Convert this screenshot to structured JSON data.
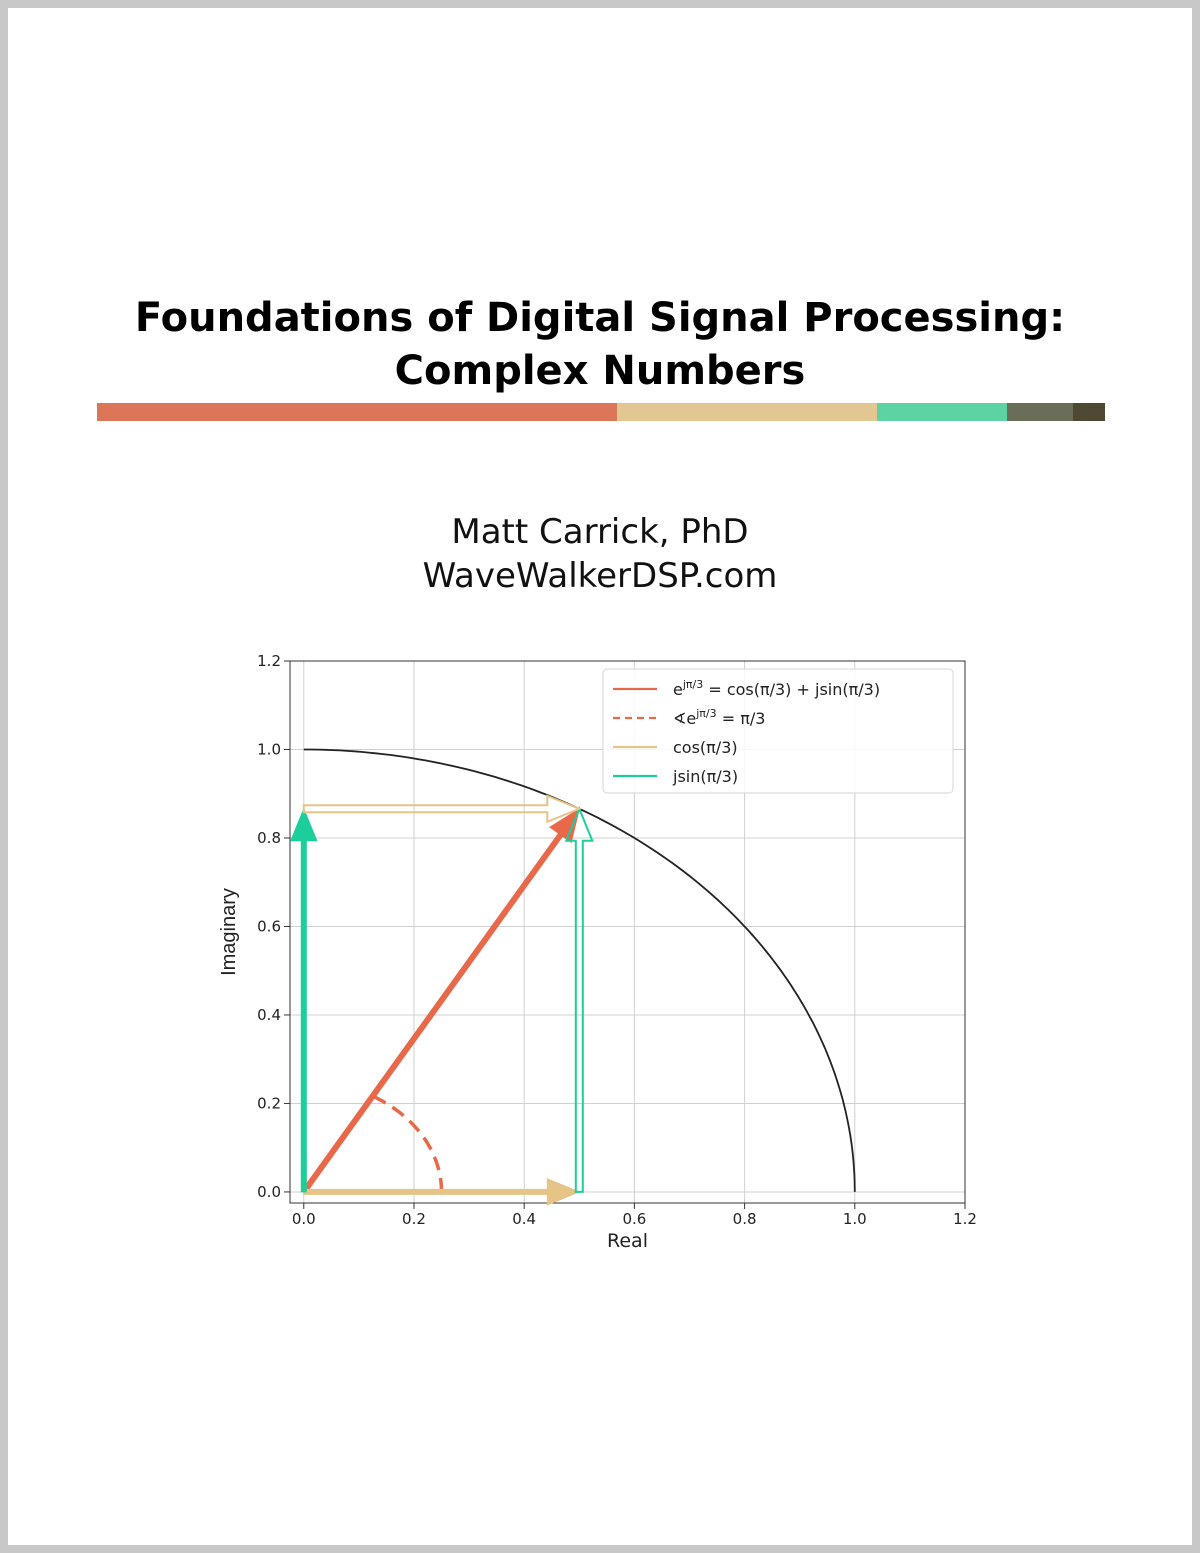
{
  "document": {
    "title_line1": "Foundations of Digital Signal Processing:",
    "title_line2": "Complex Numbers",
    "author": "Matt Carrick, PhD",
    "website": "WaveWalkerDSP.com"
  },
  "color_bar": [
    {
      "color": "#dc7658",
      "share": 0.516
    },
    {
      "color": "#e2c792",
      "share": 0.258
    },
    {
      "color": "#5dd3a3",
      "share": 0.129
    },
    {
      "color": "#6a6d58",
      "share": 0.065
    },
    {
      "color": "#4f4934",
      "share": 0.032
    }
  ],
  "colors": {
    "orange": "#e8694a",
    "sand": "#e6c386",
    "teal": "#1ccf9a",
    "circle": "#222222",
    "grid": "#d0d0d0"
  },
  "chart_data": {
    "type": "line",
    "xlabel": "Real",
    "ylabel": "Imaginary",
    "xlim": [
      -0.025,
      1.2
    ],
    "ylim": [
      -0.025,
      1.2
    ],
    "xticks": [
      "0.0",
      "0.2",
      "0.4",
      "0.6",
      "0.8",
      "1.0",
      "1.2"
    ],
    "yticks": [
      "0.0",
      "0.2",
      "0.4",
      "0.6",
      "0.8",
      "1.0",
      "1.2"
    ],
    "grid": true,
    "legend_position": "top-right",
    "legend": [
      {
        "style": "solid",
        "color": "#e8694a",
        "pre": "e",
        "sup": "jπ/3",
        "post": " = cos(π/3) + jsin(π/3)"
      },
      {
        "style": "dashed",
        "color": "#e8694a",
        "pre": "∢e",
        "sup": "jπ/3",
        "post": " = π/3"
      },
      {
        "style": "solid",
        "color": "#e6c386",
        "pre": "cos(π/3)",
        "sup": "",
        "post": ""
      },
      {
        "style": "solid",
        "color": "#1ccf9a",
        "pre": "jsin(π/3)",
        "sup": "",
        "post": ""
      }
    ],
    "unit_circle_arc": {
      "radius": 1.0,
      "from_deg": 0,
      "to_deg": 90
    },
    "vectors": [
      {
        "name": "complex-exponential",
        "from": [
          0,
          0
        ],
        "to": [
          0.5,
          0.866
        ],
        "style": "filled",
        "color": "#e8694a"
      },
      {
        "name": "real-part",
        "from": [
          0,
          0
        ],
        "to": [
          0.5,
          0
        ],
        "style": "filled",
        "color": "#e6c386"
      },
      {
        "name": "imaginary-part",
        "from": [
          0,
          0
        ],
        "to": [
          0,
          0.866
        ],
        "style": "filled",
        "color": "#1ccf9a"
      },
      {
        "name": "imaginary-part-shifted",
        "from": [
          0.5,
          0
        ],
        "to": [
          0.5,
          0.866
        ],
        "style": "hollow",
        "color": "#1ccf9a"
      },
      {
        "name": "real-part-shifted",
        "from": [
          0,
          0.866
        ],
        "to": [
          0.5,
          0.866
        ],
        "style": "hollow",
        "color": "#e6c386"
      }
    ],
    "angle_arc": {
      "radius": 0.25,
      "from_deg": 0,
      "to_deg": 60,
      "style": "dashed",
      "color": "#e8694a"
    }
  }
}
